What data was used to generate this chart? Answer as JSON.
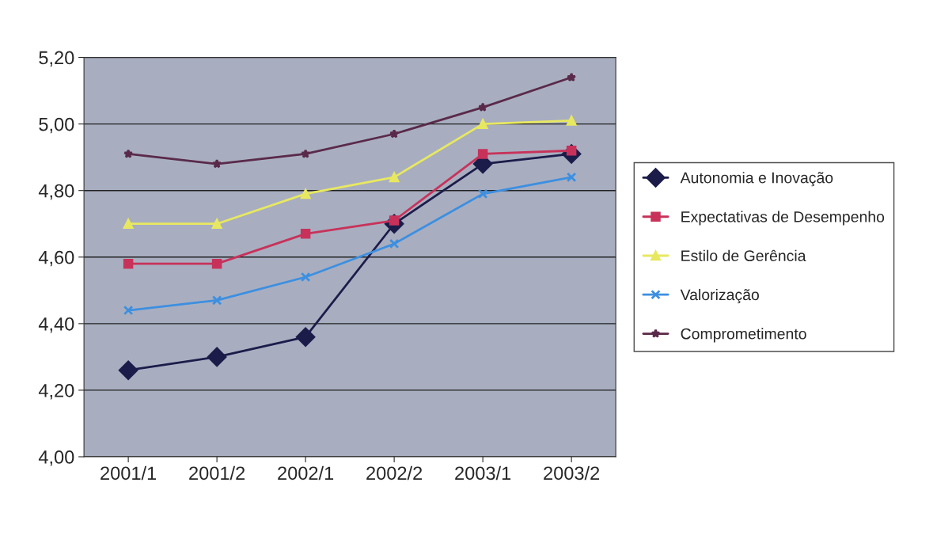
{
  "chart_data": {
    "type": "line",
    "categories": [
      "2001/1",
      "2001/2",
      "2002/1",
      "2002/2",
      "2003/1",
      "2003/2"
    ],
    "series": [
      {
        "name": "Autonomia e Inovação",
        "color": "#1c1c4a",
        "marker": "diamond",
        "values": [
          4.26,
          4.3,
          4.36,
          4.7,
          4.88,
          4.91
        ]
      },
      {
        "name": "Expectativas de Desempenho",
        "color": "#c8325a",
        "marker": "square",
        "values": [
          4.58,
          4.58,
          4.67,
          4.71,
          4.91,
          4.92
        ]
      },
      {
        "name": "Estilo de Gerência",
        "color": "#e8e860",
        "marker": "triangle",
        "values": [
          4.7,
          4.7,
          4.79,
          4.84,
          5.0,
          5.01
        ]
      },
      {
        "name": "Valorização",
        "color": "#3d8fe0",
        "marker": "cross",
        "values": [
          4.44,
          4.47,
          4.54,
          4.64,
          4.79,
          4.84
        ]
      },
      {
        "name": "Comprometimento",
        "color": "#5a2a4a",
        "marker": "star",
        "values": [
          4.91,
          4.88,
          4.91,
          4.97,
          5.05,
          5.14
        ]
      }
    ],
    "ylim": [
      4.0,
      5.2
    ],
    "yticks": [
      {
        "value": 4.0,
        "label": "4,00"
      },
      {
        "value": 4.2,
        "label": "4,20"
      },
      {
        "value": 4.4,
        "label": "4,40"
      },
      {
        "value": 4.6,
        "label": "4,60"
      },
      {
        "value": 4.8,
        "label": "4,80"
      },
      {
        "value": 5.0,
        "label": "5,00"
      },
      {
        "value": 5.2,
        "label": "5,20"
      }
    ],
    "grid": "y",
    "legend": "right",
    "line_style": "solid"
  }
}
